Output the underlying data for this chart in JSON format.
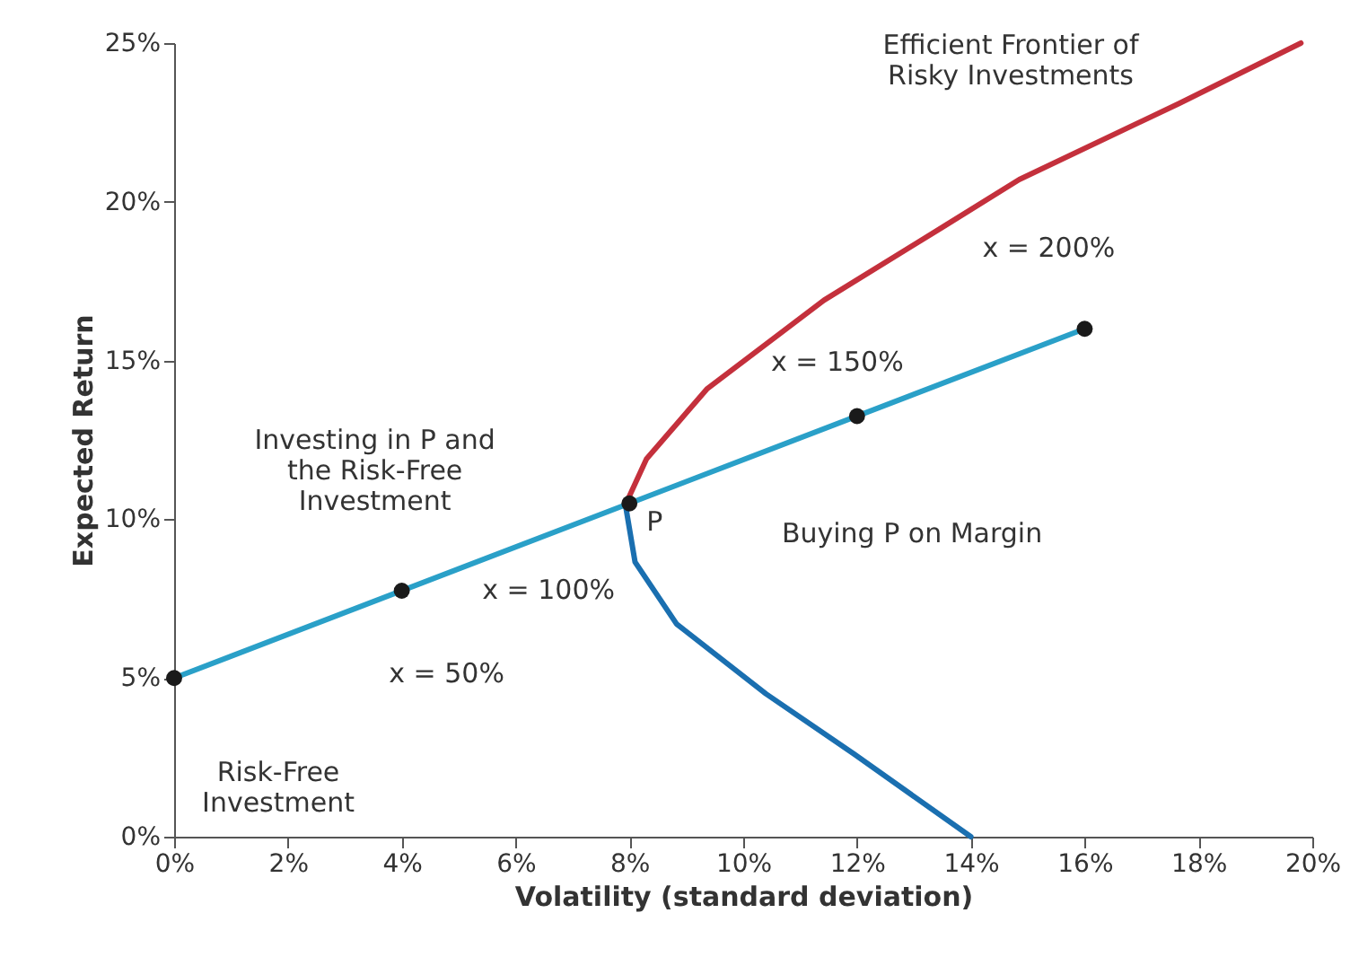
{
  "chart_data": {
    "type": "line",
    "xlabel": "Volatility (standard deviation)",
    "ylabel": "Expected Return",
    "xlim": [
      0,
      20
    ],
    "ylim": [
      0,
      25
    ],
    "xticks": [
      {
        "value": 0,
        "label": "0%"
      },
      {
        "value": 2,
        "label": "2%"
      },
      {
        "value": 4,
        "label": "4%"
      },
      {
        "value": 6,
        "label": "6%"
      },
      {
        "value": 8,
        "label": "8%"
      },
      {
        "value": 10,
        "label": "10%"
      },
      {
        "value": 12,
        "label": "12%"
      },
      {
        "value": 14,
        "label": "14%"
      },
      {
        "value": 16,
        "label": "16%"
      },
      {
        "value": 18,
        "label": "18%"
      },
      {
        "value": 20,
        "label": "20%"
      }
    ],
    "yticks": [
      {
        "value": 0,
        "label": "0%"
      },
      {
        "value": 5,
        "label": "5%"
      },
      {
        "value": 10,
        "label": "10%"
      },
      {
        "value": 15,
        "label": "15%"
      },
      {
        "value": 20,
        "label": "20%"
      },
      {
        "value": 25,
        "label": "25%"
      }
    ],
    "grid": false,
    "line_style": "solid",
    "series": [
      {
        "color": "#c4303c",
        "x": [
          7.93,
          8.3,
          9.36,
          11.42,
          13.5,
          14.85,
          17.66,
          19.8
        ],
        "values": [
          10.46,
          11.9,
          14.1,
          16.9,
          19.2,
          20.7,
          23.1,
          25
        ]
      },
      {
        "color": "#1a6fb0",
        "x": [
          7.93,
          8.1,
          8.83,
          10.4,
          11.95,
          14
        ],
        "values": [
          10.46,
          8.65,
          6.7,
          4.5,
          2.6,
          0
        ]
      },
      {
        "color": "#2aa0c8",
        "x": [
          0,
          16
        ],
        "values": [
          5,
          16
        ]
      },
      {
        "type": "scatter",
        "marker": "circle",
        "color": "#1a1a1a",
        "x": [
          0,
          4,
          8,
          12,
          16
        ],
        "values": [
          5,
          7.75,
          10.5,
          13.25,
          16
        ]
      }
    ],
    "annotations": [
      "Efficient Frontier of\nRisky Investments",
      {
        "text": "x = 200%",
        "x": 16,
        "y": 16
      },
      {
        "text": "x = 150%",
        "x": 12,
        "y": 13.25
      },
      {
        "text": "Investing in P and\nthe Risk-Free\nInvestment",
        "x": 4,
        "y": 7.75
      },
      "Buying P on Margin",
      {
        "text": "x = 100%",
        "x": 8,
        "y": 10.5
      },
      {
        "text": "P",
        "x": 8,
        "y": 10.5
      },
      {
        "text": "x = 50%",
        "x": 4,
        "y": 7.75
      },
      "Risk-Free\nInvestment"
    ]
  }
}
